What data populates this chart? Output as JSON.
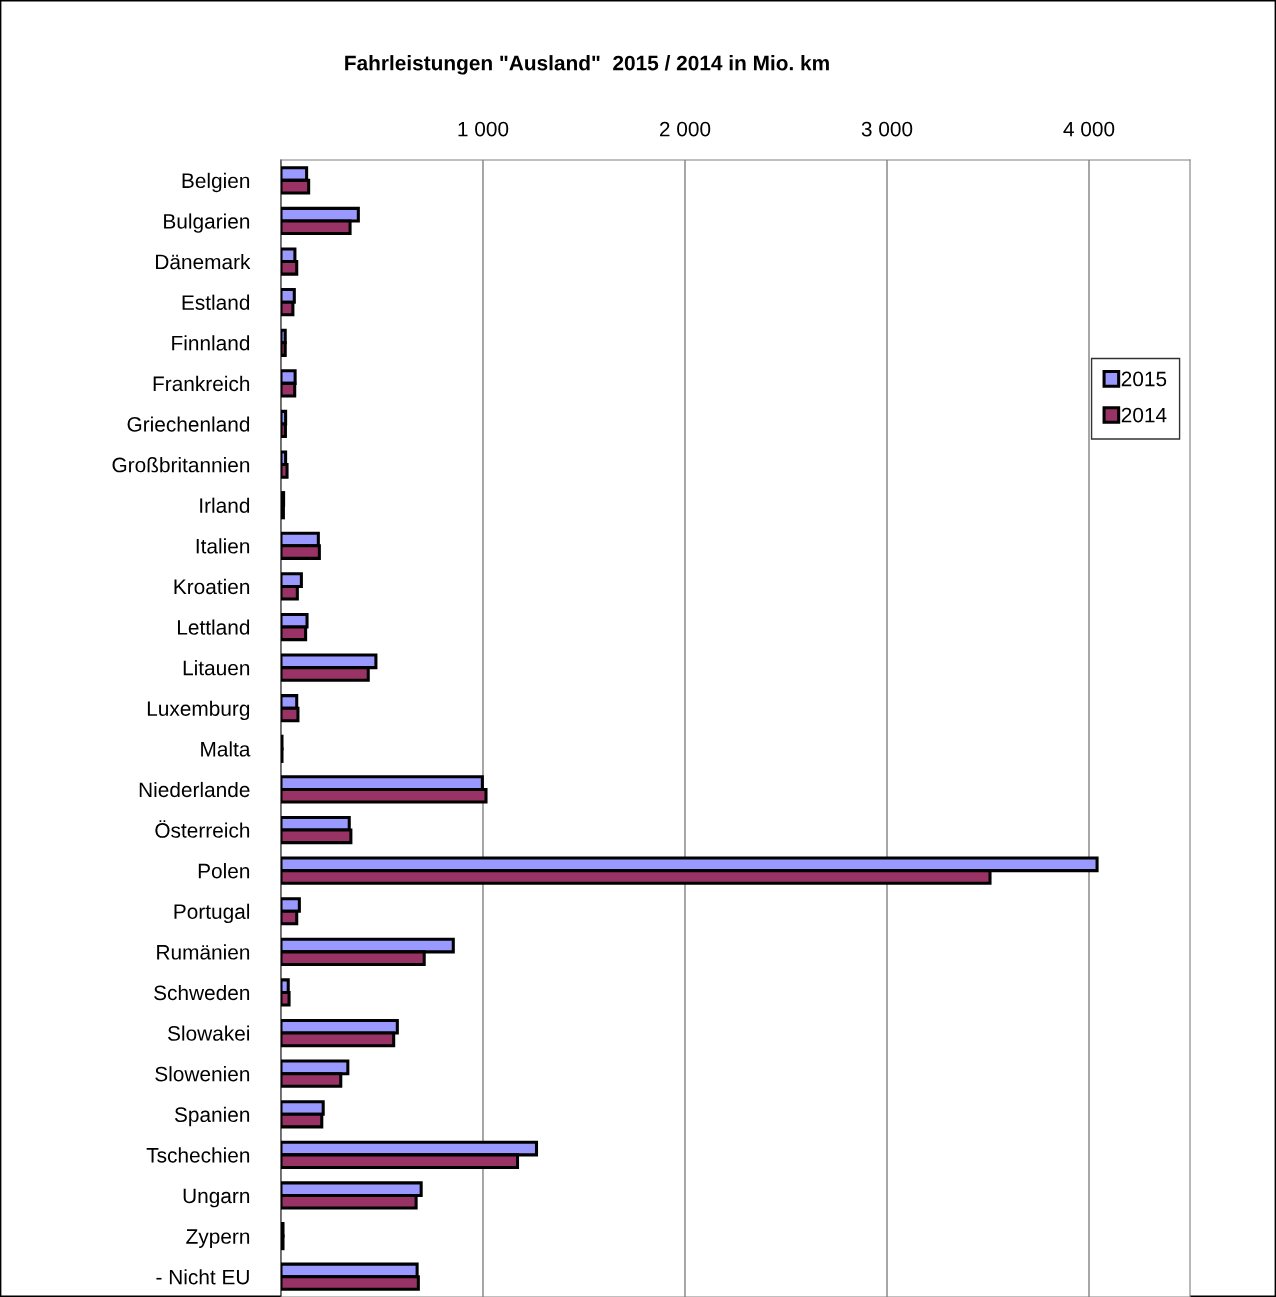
{
  "chart_data": {
    "type": "bar",
    "orientation": "horizontal",
    "title": "Fahrleistungen \"Ausland\"  2015 / 2014 in Mio. km",
    "categories": [
      "Belgien",
      "Bulgarien",
      "Dänemark",
      "Estland",
      "Finnland",
      "Frankreich",
      "Griechenland",
      "Großbritannien",
      "Irland",
      "Italien",
      "Kroatien",
      "Lettland",
      "Litauen",
      "Luxemburg",
      "Malta",
      "Niederlande",
      "Österreich",
      "Polen",
      "Portugal",
      "Rumänien",
      "Schweden",
      "Slowakei",
      "Slowenien",
      "Spanien",
      "Tschechien",
      "Ungarn",
      "Zypern",
      "- Nicht EU"
    ],
    "series": [
      {
        "name": "2015",
        "color": "#9999ff",
        "values": [
          127,
          383,
          69,
          66,
          21,
          70,
          23,
          23,
          13,
          185,
          101,
          129,
          470,
          78,
          5,
          997,
          338,
          4040,
          91,
          853,
          36,
          576,
          331,
          209,
          1265,
          694,
          10,
          674
        ]
      },
      {
        "name": "2014",
        "color": "#993366",
        "values": [
          137,
          342,
          78,
          59,
          21,
          68,
          22,
          30,
          12,
          190,
          81,
          122,
          432,
          84,
          5,
          1015,
          346,
          3510,
          78,
          709,
          40,
          558,
          296,
          202,
          1171,
          669,
          10,
          680
        ]
      }
    ],
    "xlim": [
      0,
      4500
    ],
    "xticks": [
      {
        "value": 1000,
        "label": "1 000"
      },
      {
        "value": 2000,
        "label": "2 000"
      },
      {
        "value": 3000,
        "label": "3 000"
      },
      {
        "value": 4000,
        "label": "4 000"
      }
    ],
    "grid": "x",
    "legend": "right"
  }
}
